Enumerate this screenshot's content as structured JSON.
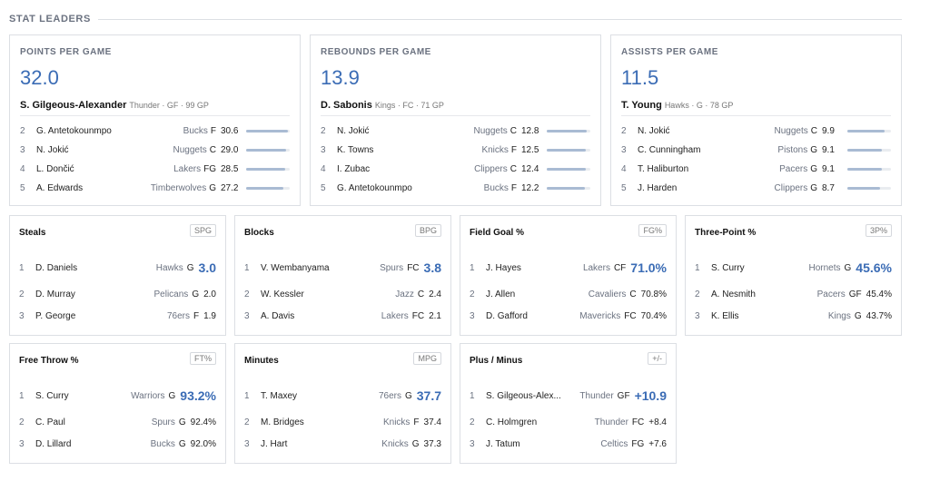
{
  "section": {
    "title": "STAT LEADERS"
  },
  "big_cards": [
    {
      "category": "POINTS PER GAME",
      "value": "32.0",
      "leader": {
        "name": "S. Gilgeous-Alexander",
        "meta": "Thunder · GF · 99 GP"
      },
      "rows": [
        {
          "rank": "2",
          "player": "G. Antetokounmpo",
          "team": "Bucks",
          "pos": "F",
          "value": "30.6",
          "fill": 0.96
        },
        {
          "rank": "3",
          "player": "N. Jokić",
          "team": "Nuggets",
          "pos": "C",
          "value": "29.0",
          "fill": 0.91
        },
        {
          "rank": "4",
          "player": "L. Dončić",
          "team": "Lakers",
          "pos": "FG",
          "value": "28.5",
          "fill": 0.89
        },
        {
          "rank": "5",
          "player": "A. Edwards",
          "team": "Timberwolves",
          "pos": "G",
          "value": "27.2",
          "fill": 0.85
        }
      ]
    },
    {
      "category": "REBOUNDS PER GAME",
      "value": "13.9",
      "leader": {
        "name": "D. Sabonis",
        "meta": "Kings · FC · 71 GP"
      },
      "rows": [
        {
          "rank": "2",
          "player": "N. Jokić",
          "team": "Nuggets",
          "pos": "C",
          "value": "12.8",
          "fill": 0.92
        },
        {
          "rank": "3",
          "player": "K. Towns",
          "team": "Knicks",
          "pos": "F",
          "value": "12.5",
          "fill": 0.9
        },
        {
          "rank": "4",
          "player": "I. Zubac",
          "team": "Clippers",
          "pos": "C",
          "value": "12.4",
          "fill": 0.89
        },
        {
          "rank": "5",
          "player": "G. Antetokounmpo",
          "team": "Bucks",
          "pos": "F",
          "value": "12.2",
          "fill": 0.88
        }
      ]
    },
    {
      "category": "ASSISTS PER GAME",
      "value": "11.5",
      "leader": {
        "name": "T. Young",
        "meta": "Hawks · G · 78 GP"
      },
      "rows": [
        {
          "rank": "2",
          "player": "N. Jokić",
          "team": "Nuggets",
          "pos": "C",
          "value": "9.9",
          "fill": 0.86
        },
        {
          "rank": "3",
          "player": "C. Cunningham",
          "team": "Pistons",
          "pos": "G",
          "value": "9.1",
          "fill": 0.79
        },
        {
          "rank": "4",
          "player": "T. Haliburton",
          "team": "Pacers",
          "pos": "G",
          "value": "9.1",
          "fill": 0.79
        },
        {
          "rank": "5",
          "player": "J. Harden",
          "team": "Clippers",
          "pos": "G",
          "value": "8.7",
          "fill": 0.76
        }
      ]
    }
  ],
  "small_cards": [
    {
      "category": "Steals",
      "abbr": "SPG",
      "rows": [
        {
          "rank": "1",
          "player": "D. Daniels",
          "team": "Hawks",
          "pos": "G",
          "value": "3.0"
        },
        {
          "rank": "2",
          "player": "D. Murray",
          "team": "Pelicans",
          "pos": "G",
          "value": "2.0"
        },
        {
          "rank": "3",
          "player": "P. George",
          "team": "76ers",
          "pos": "F",
          "value": "1.9"
        }
      ]
    },
    {
      "category": "Blocks",
      "abbr": "BPG",
      "rows": [
        {
          "rank": "1",
          "player": "V. Wembanyama",
          "team": "Spurs",
          "pos": "FC",
          "value": "3.8"
        },
        {
          "rank": "2",
          "player": "W. Kessler",
          "team": "Jazz",
          "pos": "C",
          "value": "2.4"
        },
        {
          "rank": "3",
          "player": "A. Davis",
          "team": "Lakers",
          "pos": "FC",
          "value": "2.1"
        }
      ]
    },
    {
      "category": "Field Goal %",
      "abbr": "FG%",
      "rows": [
        {
          "rank": "1",
          "player": "J. Hayes",
          "team": "Lakers",
          "pos": "CF",
          "value": "71.0%"
        },
        {
          "rank": "2",
          "player": "J. Allen",
          "team": "Cavaliers",
          "pos": "C",
          "value": "70.8%"
        },
        {
          "rank": "3",
          "player": "D. Gafford",
          "team": "Mavericks",
          "pos": "FC",
          "value": "70.4%"
        }
      ]
    },
    {
      "category": "Three-Point %",
      "abbr": "3P%",
      "rows": [
        {
          "rank": "1",
          "player": "S. Curry",
          "team": "Hornets",
          "pos": "G",
          "value": "45.6%"
        },
        {
          "rank": "2",
          "player": "A. Nesmith",
          "team": "Pacers",
          "pos": "GF",
          "value": "45.4%"
        },
        {
          "rank": "3",
          "player": "K. Ellis",
          "team": "Kings",
          "pos": "G",
          "value": "43.7%"
        }
      ]
    },
    {
      "category": "Free Throw %",
      "abbr": "FT%",
      "rows": [
        {
          "rank": "1",
          "player": "S. Curry",
          "team": "Warriors",
          "pos": "G",
          "value": "93.2%"
        },
        {
          "rank": "2",
          "player": "C. Paul",
          "team": "Spurs",
          "pos": "G",
          "value": "92.4%"
        },
        {
          "rank": "3",
          "player": "D. Lillard",
          "team": "Bucks",
          "pos": "G",
          "value": "92.0%"
        }
      ]
    },
    {
      "category": "Minutes",
      "abbr": "MPG",
      "rows": [
        {
          "rank": "1",
          "player": "T. Maxey",
          "team": "76ers",
          "pos": "G",
          "value": "37.7"
        },
        {
          "rank": "2",
          "player": "M. Bridges",
          "team": "Knicks",
          "pos": "F",
          "value": "37.4"
        },
        {
          "rank": "3",
          "player": "J. Hart",
          "team": "Knicks",
          "pos": "G",
          "value": "37.3"
        }
      ]
    },
    {
      "category": "Plus / Minus",
      "abbr": "+/-",
      "rows": [
        {
          "rank": "1",
          "player": "S. Gilgeous-Alex...",
          "team": "Thunder",
          "pos": "GF",
          "value": "+10.9"
        },
        {
          "rank": "2",
          "player": "C. Holmgren",
          "team": "Thunder",
          "pos": "FC",
          "value": "+8.4"
        },
        {
          "rank": "3",
          "player": "J. Tatum",
          "team": "Celtics",
          "pos": "FG",
          "value": "+7.6"
        }
      ]
    }
  ]
}
